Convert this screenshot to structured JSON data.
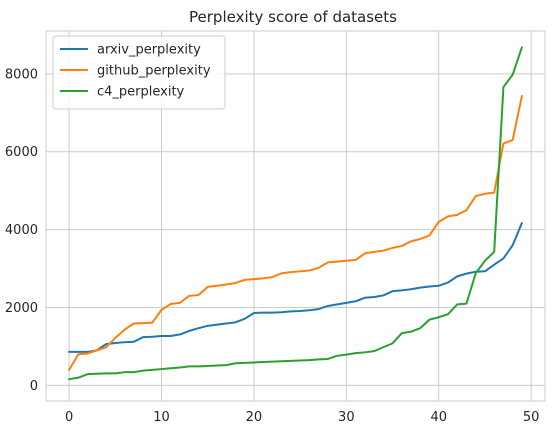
{
  "chart_data": {
    "type": "line",
    "title": "Perplexity score of datasets",
    "xlabel": "",
    "ylabel": "",
    "xlim": [
      -2.5,
      51.5
    ],
    "ylim": [
      -400,
      9100
    ],
    "xticks": [
      0,
      10,
      20,
      30,
      40,
      50
    ],
    "yticks": [
      0,
      2000,
      4000,
      6000,
      8000
    ],
    "grid": true,
    "legend_position": "top-left",
    "x": [
      0,
      1,
      2,
      3,
      4,
      5,
      6,
      7,
      8,
      9,
      10,
      11,
      12,
      13,
      14,
      15,
      16,
      17,
      18,
      19,
      20,
      21,
      22,
      23,
      24,
      25,
      26,
      27,
      28,
      29,
      30,
      31,
      32,
      33,
      34,
      35,
      36,
      37,
      38,
      39,
      40,
      41,
      42,
      43,
      44,
      45,
      46,
      47,
      48,
      49
    ],
    "series": [
      {
        "name": "arxiv_perplexity",
        "color": "#1f77b4",
        "values": [
          860,
          860,
          860,
          900,
          1060,
          1090,
          1110,
          1120,
          1240,
          1250,
          1270,
          1270,
          1310,
          1400,
          1470,
          1530,
          1560,
          1590,
          1620,
          1710,
          1860,
          1870,
          1870,
          1880,
          1900,
          1910,
          1930,
          1960,
          2040,
          2080,
          2120,
          2160,
          2250,
          2270,
          2310,
          2420,
          2440,
          2470,
          2510,
          2540,
          2560,
          2640,
          2800,
          2870,
          2920,
          2930,
          3100,
          3260,
          3600,
          4170
        ]
      },
      {
        "name": "github_perplexity",
        "color": "#ff7f0e",
        "values": [
          400,
          800,
          820,
          900,
          980,
          1220,
          1430,
          1590,
          1600,
          1610,
          1940,
          2090,
          2120,
          2300,
          2320,
          2530,
          2560,
          2590,
          2630,
          2710,
          2730,
          2750,
          2780,
          2880,
          2910,
          2930,
          2950,
          3020,
          3160,
          3180,
          3200,
          3220,
          3390,
          3430,
          3460,
          3530,
          3580,
          3700,
          3760,
          3850,
          4200,
          4340,
          4380,
          4500,
          4860,
          4920,
          4950,
          6210,
          6300,
          7430
        ]
      },
      {
        "name": "c4_perplexity",
        "color": "#2ca02c",
        "values": [
          160,
          200,
          290,
          300,
          310,
          310,
          340,
          340,
          380,
          400,
          420,
          440,
          460,
          490,
          490,
          500,
          510,
          520,
          570,
          580,
          590,
          600,
          610,
          620,
          630,
          640,
          650,
          670,
          680,
          760,
          790,
          830,
          850,
          880,
          980,
          1080,
          1340,
          1380,
          1470,
          1690,
          1750,
          1830,
          2080,
          2100,
          2880,
          3200,
          3430,
          7660,
          7980,
          8680
        ]
      }
    ]
  }
}
